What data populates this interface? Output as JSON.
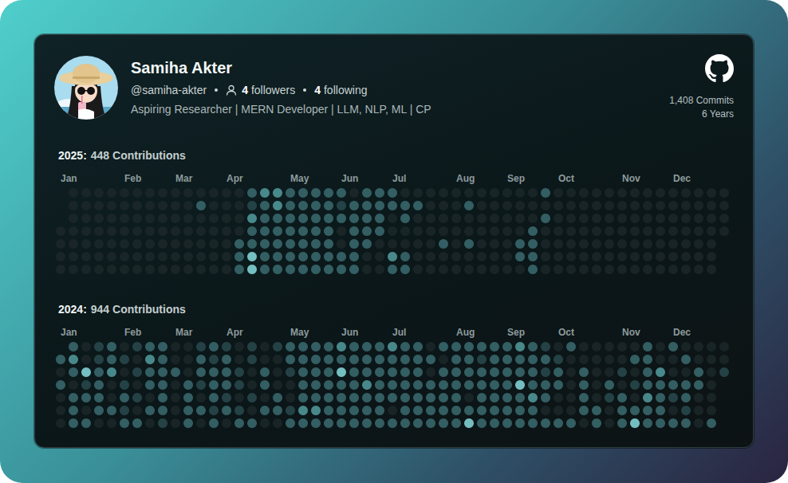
{
  "profile": {
    "name": "Samiha Akter",
    "handle": "@samiha-akter",
    "followers": {
      "count": 4,
      "label": "followers"
    },
    "following": {
      "count": 4,
      "label": "following"
    },
    "bio": "Aspiring Researcher | MERN Developer | LLM, NLP, ML | CP",
    "stats": [
      "1,408 Commits",
      "6 Years"
    ]
  },
  "chart_data": [
    {
      "type": "heatmap",
      "title": "2025:",
      "subtitle": "448 Contributions",
      "tick_labels": "x",
      "colors": [
        "#1d282b",
        "#2b4d51",
        "#3d7175",
        "#58a5a8",
        "#8ee8ec"
      ],
      "categories": [
        "Jan",
        null,
        null,
        null,
        null,
        "Feb",
        null,
        null,
        null,
        "Mar",
        null,
        null,
        null,
        "Apr",
        null,
        null,
        null,
        null,
        "May",
        null,
        null,
        null,
        "Jun",
        null,
        null,
        null,
        "Jul",
        null,
        null,
        null,
        null,
        "Aug",
        null,
        null,
        null,
        "Sep",
        null,
        null,
        null,
        "Oct",
        null,
        null,
        null,
        null,
        "Nov",
        null,
        null,
        null,
        "Dec",
        null,
        null,
        null,
        null
      ],
      "cells": [
        [
          null,
          0,
          0,
          0,
          0,
          0,
          0,
          0,
          0,
          0,
          0,
          0,
          0,
          0,
          0,
          2,
          3,
          3,
          2,
          2,
          2,
          2,
          2,
          0,
          2,
          2,
          2,
          0,
          0,
          0,
          0,
          0,
          0,
          0,
          0,
          0,
          0,
          0,
          2,
          0,
          0,
          0,
          0,
          0,
          0,
          0,
          0,
          0,
          0,
          0,
          0,
          0,
          0
        ],
        [
          null,
          0,
          0,
          0,
          0,
          0,
          0,
          0,
          0,
          0,
          0,
          2,
          0,
          0,
          0,
          1,
          2,
          3,
          2,
          2,
          2,
          2,
          1,
          2,
          2,
          2,
          2,
          2,
          2,
          0,
          0,
          0,
          2,
          0,
          0,
          0,
          0,
          0,
          0,
          0,
          0,
          0,
          0,
          0,
          0,
          0,
          0,
          0,
          0,
          0,
          0,
          0,
          0
        ],
        [
          null,
          0,
          0,
          0,
          0,
          0,
          0,
          0,
          0,
          0,
          0,
          0,
          0,
          0,
          0,
          3,
          2,
          2,
          2,
          2,
          2,
          2,
          2,
          2,
          2,
          2,
          0,
          2,
          0,
          0,
          0,
          0,
          0,
          0,
          0,
          0,
          0,
          0,
          2,
          0,
          0,
          0,
          0,
          0,
          0,
          0,
          0,
          0,
          0,
          0,
          0,
          0,
          0
        ],
        [
          0,
          0,
          0,
          0,
          0,
          0,
          0,
          0,
          0,
          0,
          0,
          0,
          0,
          0,
          0,
          2,
          2,
          2,
          2,
          2,
          2,
          2,
          0,
          2,
          2,
          2,
          0,
          0,
          0,
          0,
          0,
          0,
          0,
          0,
          0,
          0,
          0,
          2,
          0,
          0,
          0,
          0,
          0,
          0,
          0,
          0,
          0,
          0,
          0,
          0,
          0,
          0,
          0
        ],
        [
          0,
          0,
          0,
          0,
          0,
          0,
          0,
          0,
          0,
          0,
          0,
          0,
          0,
          0,
          2,
          2,
          2,
          2,
          2,
          2,
          2,
          2,
          0,
          2,
          2,
          0,
          0,
          0,
          0,
          0,
          2,
          0,
          2,
          0,
          0,
          0,
          2,
          2,
          0,
          0,
          0,
          0,
          0,
          0,
          0,
          0,
          0,
          0,
          0,
          0,
          0,
          0,
          null
        ],
        [
          0,
          0,
          0,
          0,
          0,
          0,
          0,
          0,
          0,
          0,
          0,
          0,
          0,
          0,
          2,
          4,
          2,
          2,
          2,
          2,
          2,
          2,
          2,
          2,
          0,
          0,
          3,
          2,
          0,
          0,
          0,
          0,
          0,
          0,
          0,
          0,
          2,
          2,
          0,
          0,
          0,
          0,
          0,
          0,
          0,
          0,
          0,
          0,
          0,
          0,
          0,
          0,
          null
        ],
        [
          0,
          0,
          0,
          0,
          0,
          0,
          0,
          0,
          0,
          0,
          0,
          0,
          0,
          0,
          2,
          4,
          2,
          2,
          2,
          2,
          2,
          2,
          2,
          2,
          0,
          0,
          2,
          2,
          0,
          0,
          0,
          0,
          0,
          0,
          0,
          0,
          0,
          2,
          0,
          0,
          0,
          0,
          0,
          0,
          0,
          0,
          0,
          0,
          0,
          0,
          0,
          0,
          null
        ]
      ]
    },
    {
      "type": "heatmap",
      "title": "2024:",
      "subtitle": "944 Contributions",
      "tick_labels": "x",
      "colors": [
        "#1d282b",
        "#2b4d51",
        "#3d7175",
        "#58a5a8",
        "#8ee8ec"
      ],
      "categories": [
        "Jan",
        null,
        null,
        null,
        null,
        "Feb",
        null,
        null,
        null,
        "Mar",
        null,
        null,
        null,
        "Apr",
        null,
        null,
        null,
        null,
        "May",
        null,
        null,
        null,
        "Jun",
        null,
        null,
        null,
        "Jul",
        null,
        null,
        null,
        null,
        "Aug",
        null,
        null,
        null,
        "Sep",
        null,
        null,
        null,
        "Oct",
        null,
        null,
        null,
        null,
        "Nov",
        null,
        null,
        null,
        "Dec",
        null,
        null,
        null,
        null
      ],
      "cells": [
        [
          null,
          2,
          0,
          1,
          2,
          0,
          1,
          2,
          2,
          0,
          0,
          1,
          2,
          1,
          0,
          1,
          0,
          1,
          2,
          2,
          2,
          2,
          3,
          2,
          2,
          2,
          3,
          2,
          2,
          0,
          2,
          2,
          2,
          2,
          2,
          2,
          3,
          2,
          1,
          0,
          2,
          0,
          0,
          0,
          0,
          0,
          2,
          0,
          2,
          0,
          0,
          0,
          0
        ],
        [
          2,
          3,
          0,
          1,
          2,
          1,
          0,
          3,
          2,
          0,
          0,
          2,
          1,
          2,
          0,
          1,
          0,
          0,
          2,
          2,
          2,
          2,
          2,
          2,
          2,
          2,
          2,
          2,
          2,
          2,
          0,
          2,
          2,
          1,
          2,
          2,
          2,
          2,
          2,
          1,
          0,
          0,
          0,
          0,
          0,
          2,
          2,
          0,
          0,
          2,
          0,
          0,
          0
        ],
        [
          0,
          2,
          4,
          2,
          3,
          0,
          1,
          2,
          2,
          2,
          0,
          2,
          2,
          2,
          1,
          0,
          2,
          0,
          1,
          2,
          2,
          2,
          4,
          2,
          2,
          2,
          2,
          2,
          2,
          0,
          2,
          2,
          2,
          2,
          2,
          2,
          2,
          2,
          1,
          2,
          0,
          2,
          0,
          0,
          1,
          0,
          2,
          3,
          0,
          0,
          2,
          0,
          1
        ],
        [
          2,
          0,
          1,
          2,
          0,
          1,
          0,
          2,
          2,
          0,
          2,
          1,
          2,
          2,
          1,
          0,
          2,
          0,
          0,
          2,
          2,
          2,
          2,
          2,
          3,
          2,
          2,
          2,
          2,
          2,
          2,
          2,
          2,
          2,
          2,
          2,
          4,
          2,
          2,
          2,
          0,
          2,
          0,
          2,
          0,
          1,
          2,
          2,
          2,
          2,
          2,
          0,
          null
        ],
        [
          0,
          2,
          2,
          2,
          0,
          2,
          1,
          0,
          2,
          0,
          2,
          0,
          2,
          1,
          0,
          1,
          0,
          2,
          0,
          2,
          2,
          2,
          2,
          2,
          2,
          2,
          2,
          2,
          2,
          2,
          2,
          2,
          0,
          2,
          2,
          2,
          2,
          3,
          2,
          0,
          0,
          2,
          0,
          1,
          2,
          0,
          3,
          2,
          1,
          2,
          0,
          0,
          null
        ],
        [
          0,
          2,
          0,
          2,
          2,
          1,
          0,
          2,
          2,
          0,
          2,
          2,
          1,
          2,
          1,
          0,
          2,
          2,
          1,
          3,
          3,
          2,
          2,
          2,
          2,
          2,
          0,
          2,
          2,
          2,
          2,
          2,
          2,
          2,
          2,
          2,
          2,
          2,
          0,
          0,
          0,
          2,
          2,
          0,
          2,
          2,
          2,
          2,
          0,
          1,
          0,
          0,
          null
        ],
        [
          0,
          2,
          2,
          0,
          0,
          2,
          2,
          0,
          1,
          0,
          2,
          0,
          2,
          0,
          2,
          2,
          0,
          0,
          2,
          2,
          2,
          2,
          2,
          2,
          2,
          2,
          2,
          2,
          2,
          2,
          2,
          2,
          4,
          2,
          2,
          2,
          2,
          2,
          2,
          2,
          2,
          0,
          2,
          0,
          2,
          4,
          2,
          2,
          2,
          2,
          0,
          2,
          null
        ]
      ]
    }
  ]
}
